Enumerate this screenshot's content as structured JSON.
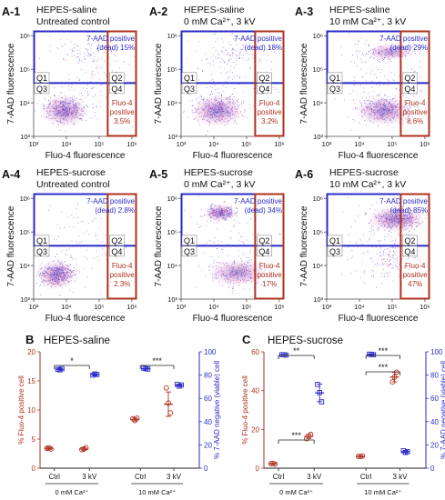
{
  "colors": {
    "blue": "#2a2ac8",
    "red": "#b0301e",
    "black": "#111111"
  },
  "flow_panels": [
    {
      "id": "A-1",
      "title1": "HEPES-saline",
      "title2": "Untreated control",
      "q2_top": "7-AAD positive",
      "q2_top_val": "(dead) 15%",
      "q4_line1": "Fluo-4",
      "q4_line2": "positive",
      "q4_val": "3.5%"
    },
    {
      "id": "A-2",
      "title1": "HEPES-saline",
      "title2": "0 mM Ca²⁺,  3 kV",
      "q2_top": "7-AAD positive",
      "q2_top_val": "(dead) 18%",
      "q4_line1": "Fluo-4",
      "q4_line2": "positive",
      "q4_val": "3.2%"
    },
    {
      "id": "A-3",
      "title1": "HEPES-saline",
      "title2": "10 mM Ca²⁺,  3 kV",
      "q2_top": "7-AAD positive",
      "q2_top_val": "(dead) 29%",
      "q4_line1": "Fluo-4",
      "q4_line2": "positive",
      "q4_val": "8.6%"
    },
    {
      "id": "A-4",
      "title1": "HEPES-sucrose",
      "title2": "Untreated control",
      "q2_top": "7-AAD positive",
      "q2_top_val": "(dead) 2.8%",
      "q4_line1": "Fluo-4",
      "q4_line2": "positive",
      "q4_val": "2.3%"
    },
    {
      "id": "A-5",
      "title1": "HEPES-sucrose",
      "title2": "0 mM Ca²⁺,  3 kV",
      "q2_top": "7-AAD positive",
      "q2_top_val": "(dead) 34%",
      "q4_line1": "Fluo-4",
      "q4_line2": "positive",
      "q4_val": "17%"
    },
    {
      "id": "A-6",
      "title1": "HEPES-sucrose",
      "title2": "10 mM Ca²⁺,  3 kV",
      "q2_top": "7-AAD positive",
      "q2_top_val": "(dead) 85%",
      "q4_line1": "Fluo-4",
      "q4_line2": "positive",
      "q4_val": "47%"
    }
  ],
  "flow_axes": {
    "xlabel": "Fluo-4 fluorescence",
    "ylabel": "7-AAD fluorescence",
    "ticks": [
      "10³",
      "10⁴",
      "10⁵",
      "10⁶"
    ],
    "quadrants": [
      "Q1",
      "Q2",
      "Q3",
      "Q4"
    ]
  },
  "chart_data": [
    {
      "type": "scatter",
      "panel": "B",
      "title": "HEPES-saline",
      "categories": [
        "Ctrl",
        "3 kV",
        "Ctrl",
        "3 kV"
      ],
      "groups": [
        "0 mM Ca²⁺",
        "10 mM Ca²⁺"
      ],
      "ylabel_left": "% Fluo-4 positive cell",
      "ylabel_right": "% 7-AAD negative (viable) cell",
      "ylim_left": [
        0,
        20
      ],
      "yticks_left": [
        "0",
        "5",
        "10",
        "15",
        "20"
      ],
      "ylim_right": [
        0,
        100
      ],
      "yticks_right": [
        "0",
        "20",
        "40",
        "60",
        "80",
        "100"
      ],
      "series": [
        {
          "name": "% Fluo-4 positive cell",
          "axis": "left",
          "marker": "circle",
          "color": "#b0301e",
          "points": [
            [
              3.4,
              3.5,
              3.3
            ],
            [
              3.2,
              3.3,
              3.5
            ],
            [
              8.5,
              8.2,
              8.6
            ],
            [
              13.8,
              11.2,
              9.5
            ]
          ],
          "means": [
            3.4,
            3.3,
            8.4,
            11.0
          ],
          "err": [
            0.2,
            0.2,
            0.3,
            2.1
          ]
        },
        {
          "name": "% 7-AAD negative (viable) cell",
          "axis": "right",
          "marker": "square",
          "color": "#2a2ac8",
          "points": [
            [
              85,
              84.5,
              85.5
            ],
            [
              80,
              81,
              80.5
            ],
            [
              86,
              85.5,
              85.2
            ],
            [
              72,
              70.5,
              71.5
            ]
          ],
          "means": [
            85,
            80.5,
            85.5,
            71.3
          ],
          "err": [
            0.6,
            0.6,
            0.5,
            0.8
          ]
        }
      ],
      "significance": [
        "*",
        "***"
      ]
    },
    {
      "type": "scatter",
      "panel": "C",
      "title": "HEPES-sucrose",
      "categories": [
        "Ctrl",
        "3 kV",
        "Ctrl",
        "3 kV"
      ],
      "groups": [
        "0 mM Ca²⁺",
        "10 mM Ca²⁺"
      ],
      "ylabel_left": "% Fluo-4 positive cell",
      "ylabel_right": "% 7-AAD negative (viable) cell",
      "ylim_left": [
        0,
        60
      ],
      "yticks_left": [
        "0",
        "20",
        "40",
        "60"
      ],
      "ylim_right": [
        0,
        100
      ],
      "yticks_right": [
        "0",
        "20",
        "40",
        "60",
        "80",
        "100"
      ],
      "series": [
        {
          "name": "% Fluo-4 positive cell",
          "axis": "left",
          "marker": "circle",
          "color": "#b0301e",
          "points": [
            [
              2.3,
              2.5,
              2.1
            ],
            [
              15.2,
              16.5,
              17.4
            ],
            [
              6.1,
              6.0,
              6.3
            ],
            [
              44.5,
              47.0,
              49.5
            ]
          ],
          "means": [
            2.3,
            16.4,
            6.1,
            47.0
          ],
          "err": [
            0.2,
            1.1,
            0.2,
            2.5
          ]
        },
        {
          "name": "% 7-AAD negative (viable) cell",
          "axis": "right",
          "marker": "square",
          "color": "#2a2ac8",
          "points": [
            [
              97.5,
              97.5,
              97.2
            ],
            [
              72,
              65,
              57
            ],
            [
              98,
              97.8,
              97.5
            ],
            [
              15,
              13.5,
              14.2
            ]
          ],
          "means": [
            97.4,
            64.7,
            97.8,
            14.2
          ],
          "err": [
            0.3,
            7.5,
            0.3,
            0.8
          ]
        }
      ],
      "significance": [
        "***",
        "**",
        "***",
        "***"
      ]
    }
  ]
}
